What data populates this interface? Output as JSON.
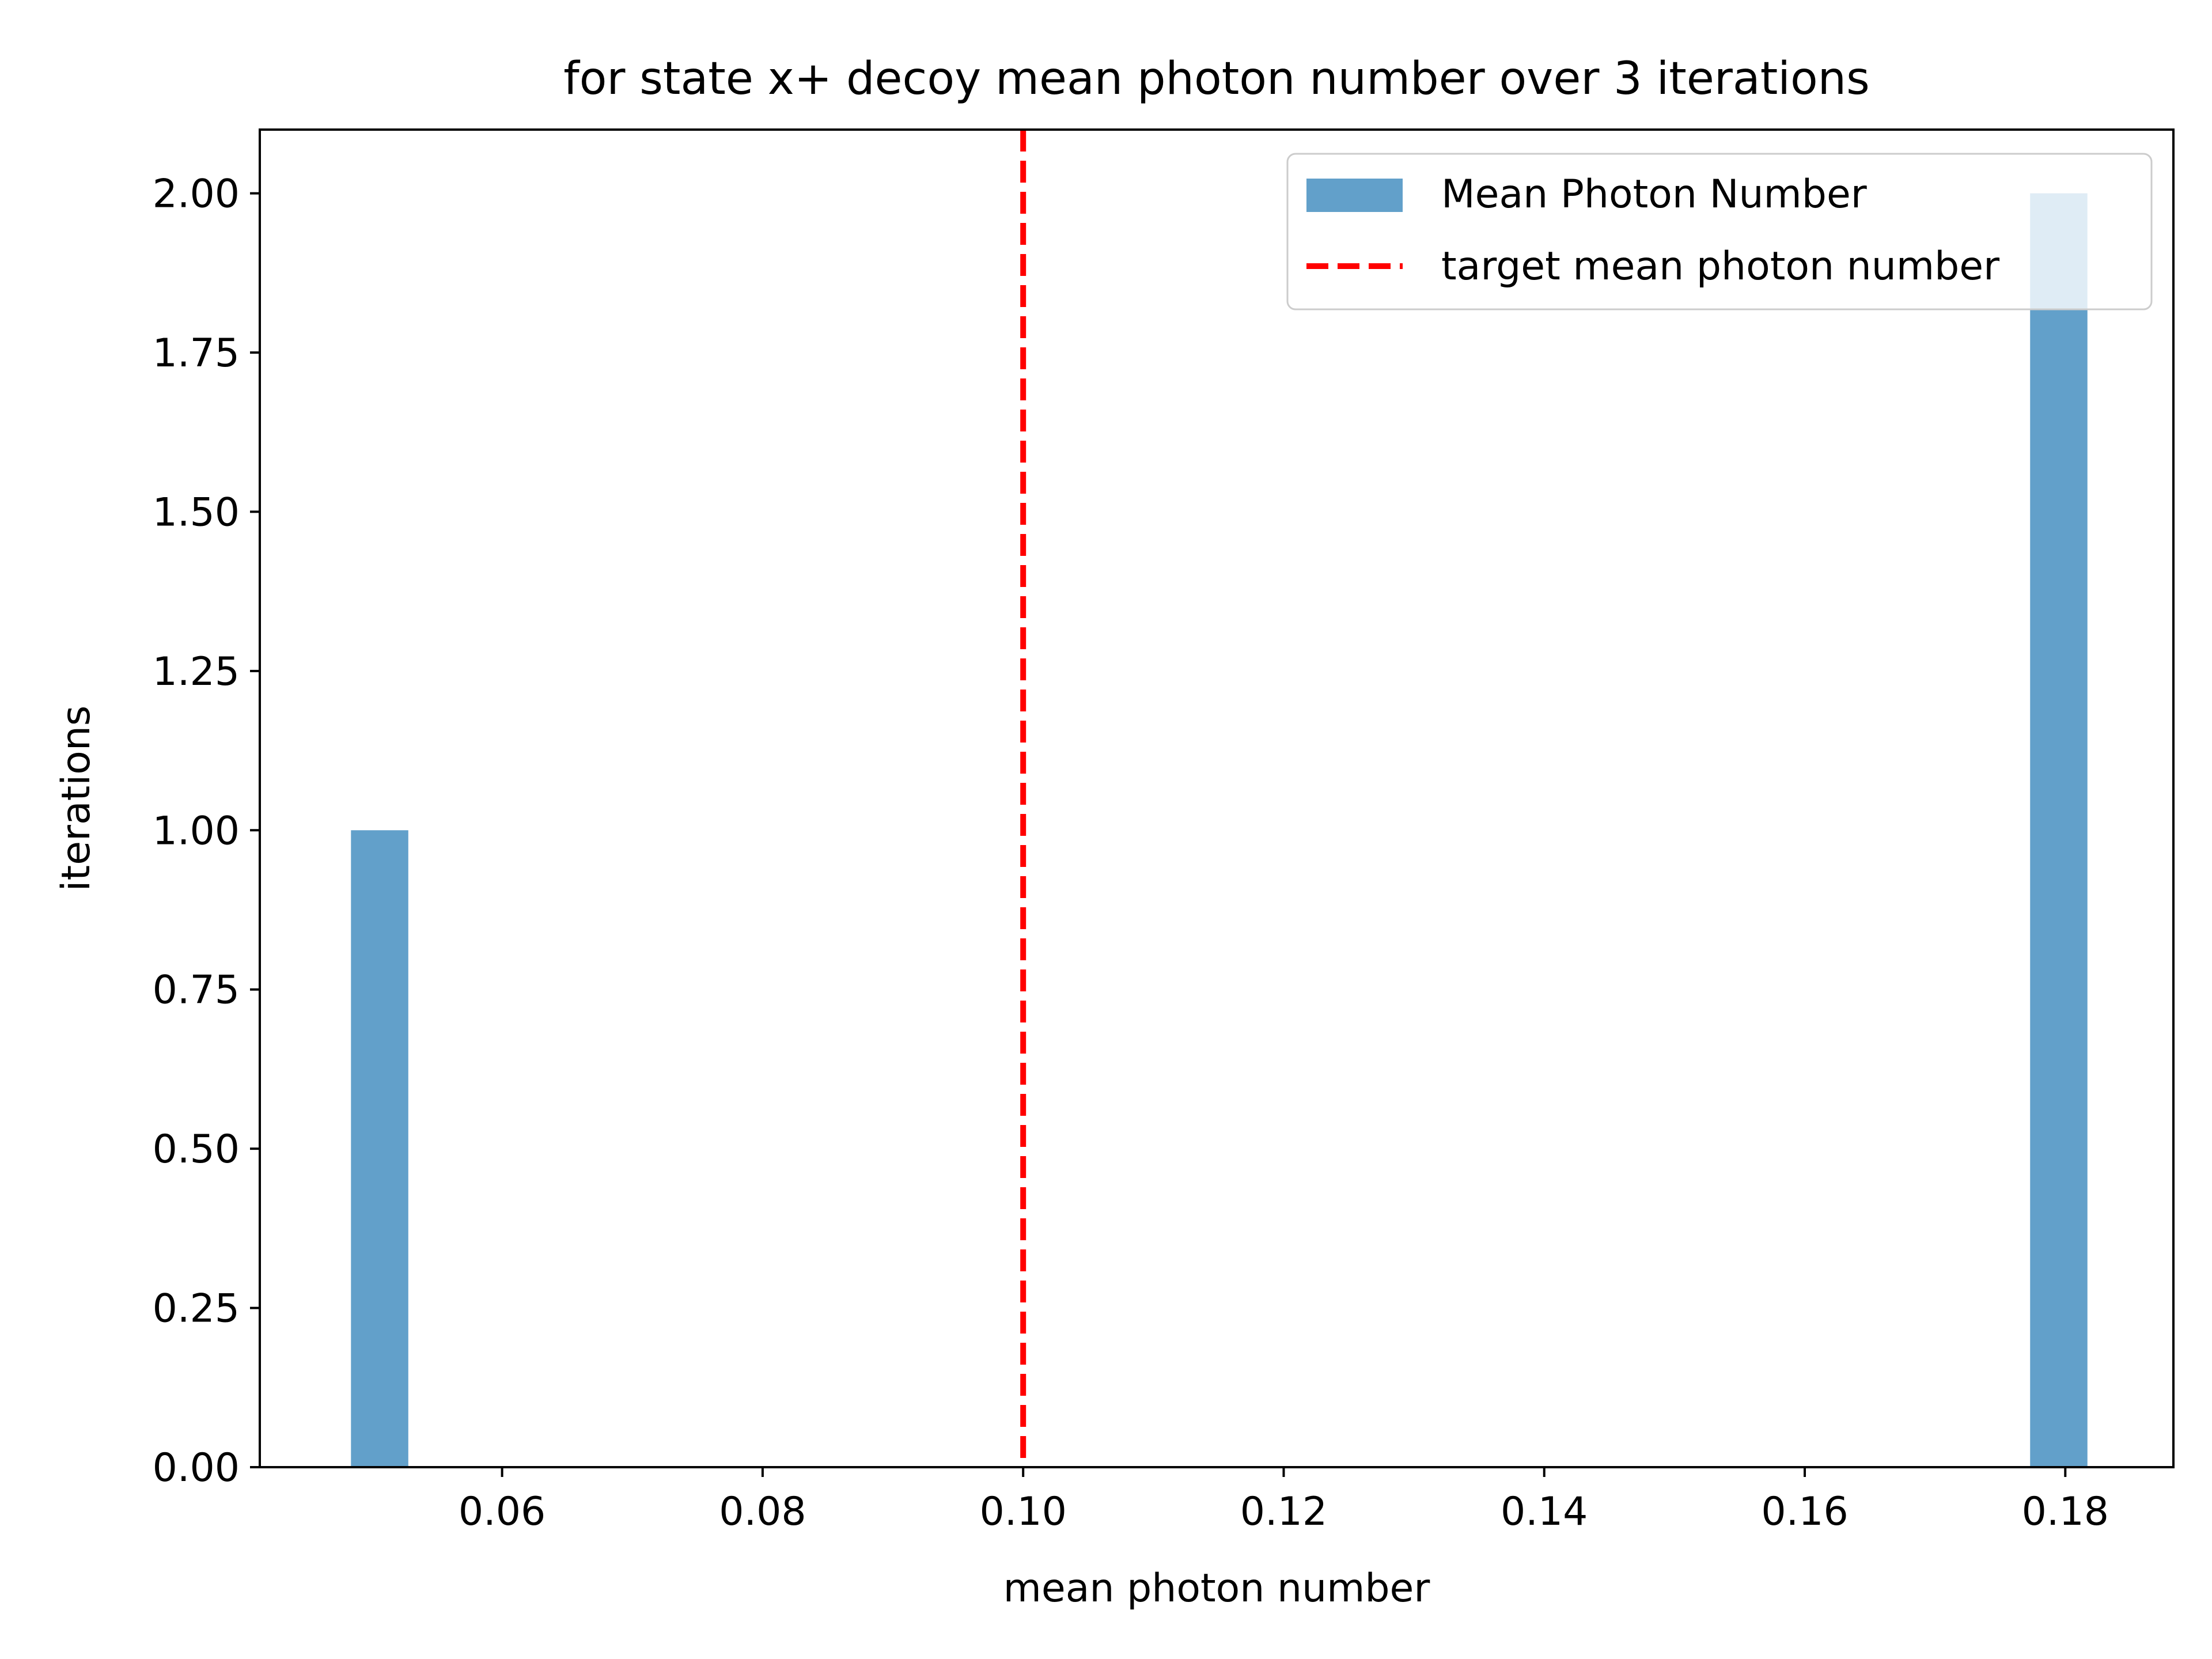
{
  "chart_data": {
    "type": "bar",
    "title": "for state x+ decoy mean photon number over 3 iterations",
    "xlabel": "mean photon number",
    "ylabel": "iterations",
    "xlim": [
      0.0414,
      0.1883
    ],
    "ylim": [
      0,
      2.1
    ],
    "x_ticks": [
      "0.06",
      "0.08",
      "0.10",
      "0.12",
      "0.14",
      "0.16",
      "0.18"
    ],
    "y_ticks": [
      "0.00",
      "0.25",
      "0.50",
      "0.75",
      "1.00",
      "1.25",
      "1.50",
      "1.75",
      "2.00"
    ],
    "grid": false,
    "series": [
      {
        "name": "Mean Photon Number",
        "color": "#1f77b4",
        "opacity": 0.7,
        "bins": [
          {
            "x_start": 0.0484,
            "x_end": 0.0528,
            "count": 1
          },
          {
            "x_start": 0.1773,
            "x_end": 0.1817,
            "count": 2
          }
        ]
      }
    ],
    "reference_lines": [
      {
        "name": "target mean photon number",
        "x": 0.1,
        "color": "#ff0000",
        "style": "dashed"
      }
    ],
    "legend": {
      "position": "upper right",
      "entries": [
        "Mean Photon Number",
        "target mean photon number"
      ]
    }
  }
}
